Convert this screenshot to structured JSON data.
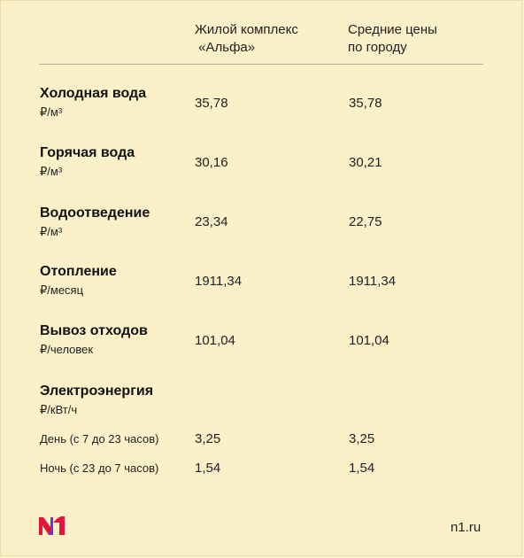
{
  "header": {
    "col1_line1": "Жилой комплекс",
    "col1_line2": " «Альфа»",
    "col2_line1": "Средние цены",
    "col2_line2": "по городу"
  },
  "rows": [
    {
      "name": "Холодная вода",
      "unit": "₽/м³",
      "alpha": "35,78",
      "city": "35,78"
    },
    {
      "name": "Горячая вода",
      "unit": "₽/м³",
      "alpha": "30,16",
      "city": "30,21"
    },
    {
      "name": "Водоотведение",
      "unit": "₽/м³",
      "alpha": "23,34",
      "city": "22,75"
    },
    {
      "name": "Отопление",
      "unit": "₽/месяц",
      "alpha": "1911,34",
      "city": "1911,34"
    },
    {
      "name": "Вывоз отходов",
      "unit": "₽/человек",
      "alpha": "101,04",
      "city": "101,04"
    }
  ],
  "electricity": {
    "name": "Электроэнергия",
    "unit": "₽/кВт/ч",
    "day": {
      "label": "День (с 7 до 23 часов)",
      "alpha": "3,25",
      "city": "3,25"
    },
    "night": {
      "label": "Ночь (с 23 до 7 часов)",
      "alpha": "1,54",
      "city": "1,54"
    }
  },
  "footer": {
    "logo": "N1",
    "site": "n1.ru",
    "logo_colors": [
      "#e8133c",
      "#6a35d9"
    ]
  }
}
